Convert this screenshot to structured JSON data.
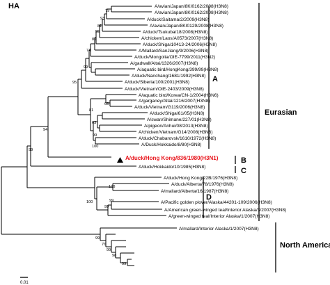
{
  "panel_title": "HA",
  "highlight_color": "#e8141b",
  "marker_icon": "black-triangle",
  "scale_bar_label": "0.01",
  "leaves": [
    "A/avian/Japan/8KI0162/2008(H3N8)",
    "A/avian/Japan/8KI0162/2008(H3N8)",
    "A/duck/Saitama/2/2009(H3N8)",
    "A/avian/Japan/8KI0129/2008(H3N8)",
    "A/duck/Tsukuba/18/2008(H3N8)",
    "A/chicken/Laos/A0573/2007(H3N8)",
    "A/duck/Shiga/10413-24/2006(H3N8)",
    "A/Mallard/SanJiang/9/2006(H3N8)",
    "A/duck/Mongolia/OIE-7799/2011(H3N2)",
    "A/gadwall/Altai/1326/2007(H3N8)",
    "A/aquatic bird/HongKong/399/99(H3N8)",
    "A/duck/Nanchang/1681/1992(H3N8)",
    "A/duck/Siberia/100/2001(H3N8)",
    "A/duck/Vietnam/OIE-2403/2009(H3N8)",
    "A/aquatic bird/Korea/CN-1/2004(H3N6)",
    "A/garganey/Altai/1216/2007(H3N8)",
    "A/duck/Vietnam/G119/2006(H3N8)",
    "A/duck/Shiga/61/05(H3N8)",
    "A/swan/Shimane/227/01(H3N8)",
    "A/pigeon/Anhui/08/2013(H3N8)",
    "A/chicken/Vietnam/G14/2008(H3N6)",
    "A/duck/Chabarovsk/1610/1972(H3N8)",
    "A/Duck/Hokkaido/8/80(H3N8)",
    "A/duck/Hong Kong/836/1980(H3N1)",
    "A/duck/Hokkaido/10/1985(H3N8)",
    "A/duck/Hong Kong/22B/1976(H3N8)",
    "A/duck/Alberta/78/1976(H3N8)",
    "A/mallard/Alberta/16/1987(H3N8)",
    "A/Pacific golden plover/Alaska/44201-109/2006(H3N8)",
    "A/American green-winged teal/Interior Alaska/3/2007(H3N8)",
    "A/green-winged teal/Interior Alaska/1/2007(H3N8)",
    "A/mallard/Interior Alaska/1/2007(H3N8)"
  ],
  "bootstrap_values": [
    "79",
    "93",
    "81",
    "55",
    "81",
    "74",
    "99",
    "95",
    "94",
    "99",
    "65",
    "81",
    "63",
    "99",
    "100",
    "100",
    "99",
    "100",
    "99",
    "99",
    "76",
    "99",
    "98",
    "99"
  ],
  "clades": [
    {
      "label": "A"
    },
    {
      "label": "B"
    },
    {
      "label": "C"
    },
    {
      "label": "D"
    }
  ],
  "regions": [
    {
      "label": "Eurasian"
    },
    {
      "label": "North American"
    }
  ]
}
